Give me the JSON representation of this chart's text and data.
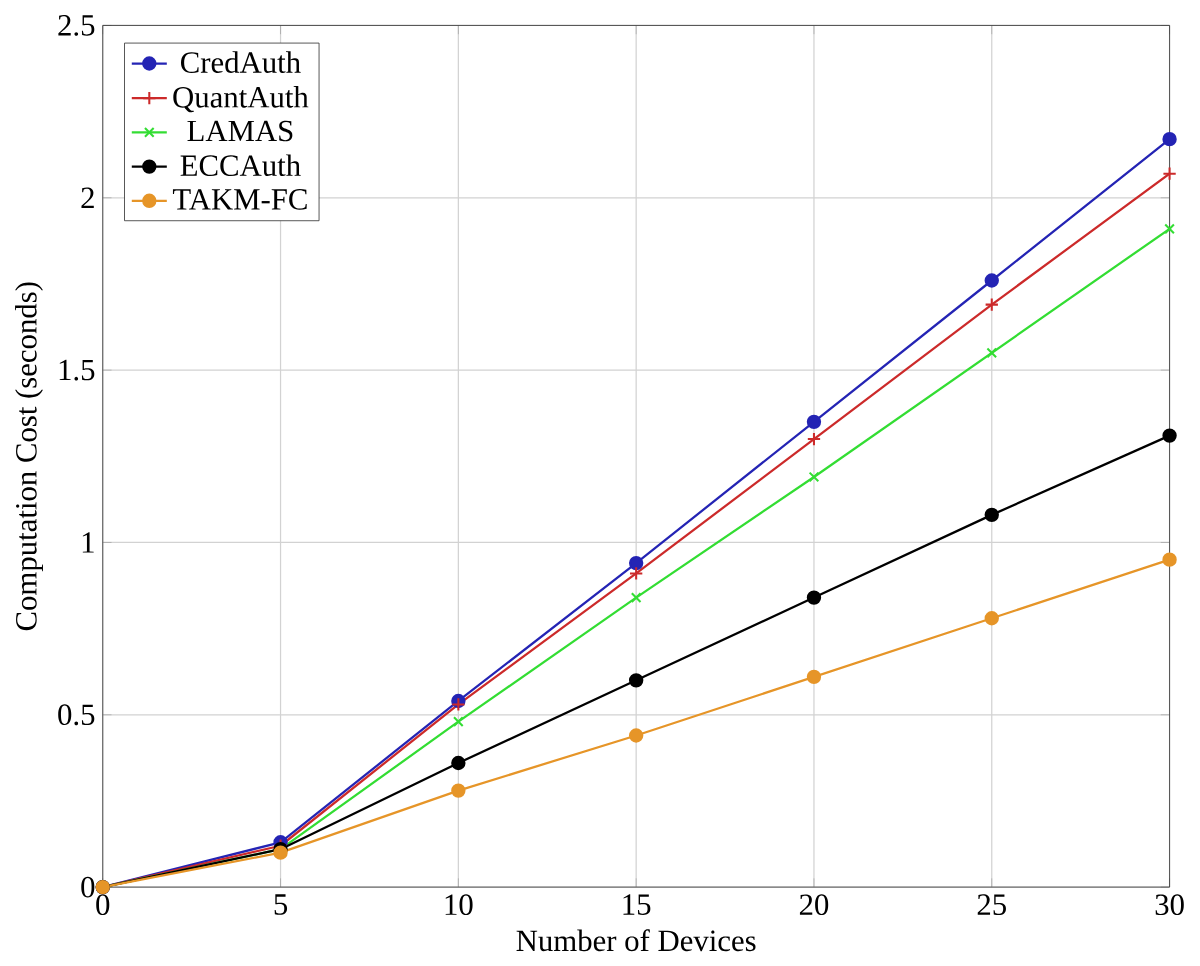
{
  "chart_data": {
    "type": "line",
    "xlabel": "Number of Devices",
    "ylabel": "Computation Cost (seconds)",
    "x": [
      0,
      5,
      10,
      15,
      20,
      25,
      30
    ],
    "series": [
      {
        "name": "CredAuth",
        "color": "#2424b4",
        "marker": "circle",
        "values": [
          0,
          0.13,
          0.54,
          0.94,
          1.35,
          1.76,
          2.17
        ]
      },
      {
        "name": "QuantAuth",
        "color": "#cc2a2a",
        "marker": "plus",
        "values": [
          0,
          0.12,
          0.53,
          0.91,
          1.3,
          1.69,
          2.07
        ]
      },
      {
        "name": "LAMAS",
        "color": "#33dd33",
        "marker": "cross",
        "values": [
          0,
          0.11,
          0.48,
          0.84,
          1.19,
          1.55,
          1.91
        ]
      },
      {
        "name": "ECCAuth",
        "color": "#000000",
        "marker": "circle",
        "values": [
          0,
          0.11,
          0.36,
          0.6,
          0.84,
          1.08,
          1.31
        ]
      },
      {
        "name": "TAKM-FC",
        "color": "#e69528",
        "marker": "circle",
        "values": [
          0,
          0.1,
          0.28,
          0.44,
          0.61,
          0.78,
          0.95
        ]
      }
    ],
    "xlim": [
      0,
      30
    ],
    "xticks": [
      0,
      5,
      10,
      15,
      20,
      25,
      30
    ],
    "ylim": [
      0,
      2.5
    ],
    "yticks": [
      0,
      0.5,
      1,
      1.5,
      2,
      2.5
    ],
    "grid": true,
    "legend": "top left",
    "line_style": "solid"
  }
}
